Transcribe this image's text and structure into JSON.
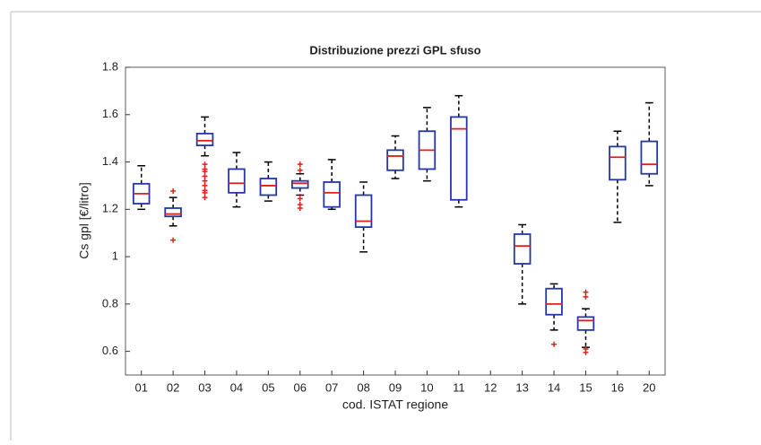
{
  "chart_data": {
    "type": "box",
    "title": "Distribuzione prezzi GPL sfuso",
    "x_label": "cod. ISTAT regione",
    "y_label": "Cs gpl [€/litro]",
    "categories": [
      "01",
      "02",
      "03",
      "04",
      "05",
      "06",
      "07",
      "08",
      "09",
      "10",
      "11",
      "12",
      "13",
      "14",
      "15",
      "16",
      "20"
    ],
    "whislo": [
      1.2,
      1.13,
      1.426,
      1.21,
      1.235,
      1.26,
      1.2,
      1.02,
      1.33,
      1.32,
      1.21,
      null,
      0.8,
      0.69,
      0.617,
      1.145,
      1.3
    ],
    "q1": [
      1.224,
      1.17,
      1.47,
      1.27,
      1.26,
      1.29,
      1.21,
      1.125,
      1.365,
      1.37,
      1.24,
      null,
      0.97,
      0.755,
      0.69,
      1.325,
      1.35
    ],
    "median": [
      1.266,
      1.18,
      1.49,
      1.31,
      1.3,
      1.31,
      1.27,
      1.15,
      1.425,
      1.45,
      1.54,
      null,
      1.045,
      0.8,
      0.73,
      1.42,
      1.39
    ],
    "q3": [
      1.308,
      1.205,
      1.52,
      1.37,
      1.33,
      1.32,
      1.315,
      1.26,
      1.45,
      1.53,
      1.59,
      null,
      1.095,
      0.865,
      0.745,
      1.465,
      1.487
    ],
    "whishi": [
      1.384,
      1.25,
      1.59,
      1.44,
      1.4,
      1.35,
      1.41,
      1.315,
      1.51,
      1.63,
      1.68,
      null,
      1.135,
      0.885,
      0.78,
      1.53,
      1.65
    ],
    "outliers": [
      [],
      [
        1.277,
        1.07
      ],
      [
        1.39,
        1.37,
        1.36,
        1.34,
        1.32,
        1.3,
        1.28,
        1.27,
        1.25
      ],
      [],
      [],
      [
        1.39,
        1.365,
        1.245,
        1.22,
        1.205
      ],
      [],
      [],
      [],
      [],
      [],
      [],
      [],
      [
        0.63
      ],
      [
        0.85,
        0.83,
        0.61,
        0.595
      ],
      [],
      []
    ],
    "box_color": "#2436a8",
    "median_color": "#e0201b",
    "whisker_color": "#000000",
    "outlier_color": "#e0201b",
    "ylim": [
      0.5,
      1.8
    ],
    "yticks": [
      0.6,
      0.8,
      1,
      1.2,
      1.4,
      1.6,
      1.8
    ]
  }
}
